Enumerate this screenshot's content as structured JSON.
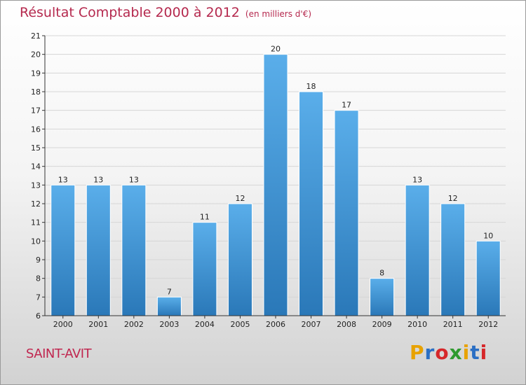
{
  "title": "Résultat Comptable 2000 à 2012",
  "subtitle": "(en milliers d'€)",
  "commune": "SAINT-AVIT",
  "logo": {
    "letters": [
      "P",
      "r",
      "o",
      "x",
      "i",
      "t",
      "i"
    ],
    "colors": [
      "#e8a200",
      "#2b6fc4",
      "#d6272a",
      "#2f9a2f",
      "#e8a200",
      "#2b6fc4",
      "#d6272a"
    ]
  },
  "chart_data": {
    "type": "bar",
    "categories": [
      "2000",
      "2001",
      "2002",
      "2003",
      "2004",
      "2005",
      "2006",
      "2007",
      "2008",
      "2009",
      "2010",
      "2011",
      "2012"
    ],
    "values": [
      13,
      13,
      13,
      7,
      11,
      12,
      20,
      18,
      17,
      8,
      13,
      12,
      10
    ],
    "title": "Résultat Comptable 2000 à 2012",
    "subtitle": "(en milliers d'€)",
    "xlabel": "",
    "ylabel": "",
    "ylim": [
      6,
      21
    ],
    "yticks": [
      6,
      7,
      8,
      9,
      10,
      11,
      12,
      13,
      14,
      15,
      16,
      17,
      18,
      19,
      20,
      21
    ],
    "grid": true,
    "bar_color_top": "#5aaeea",
    "bar_color_bottom": "#2a78b8"
  }
}
